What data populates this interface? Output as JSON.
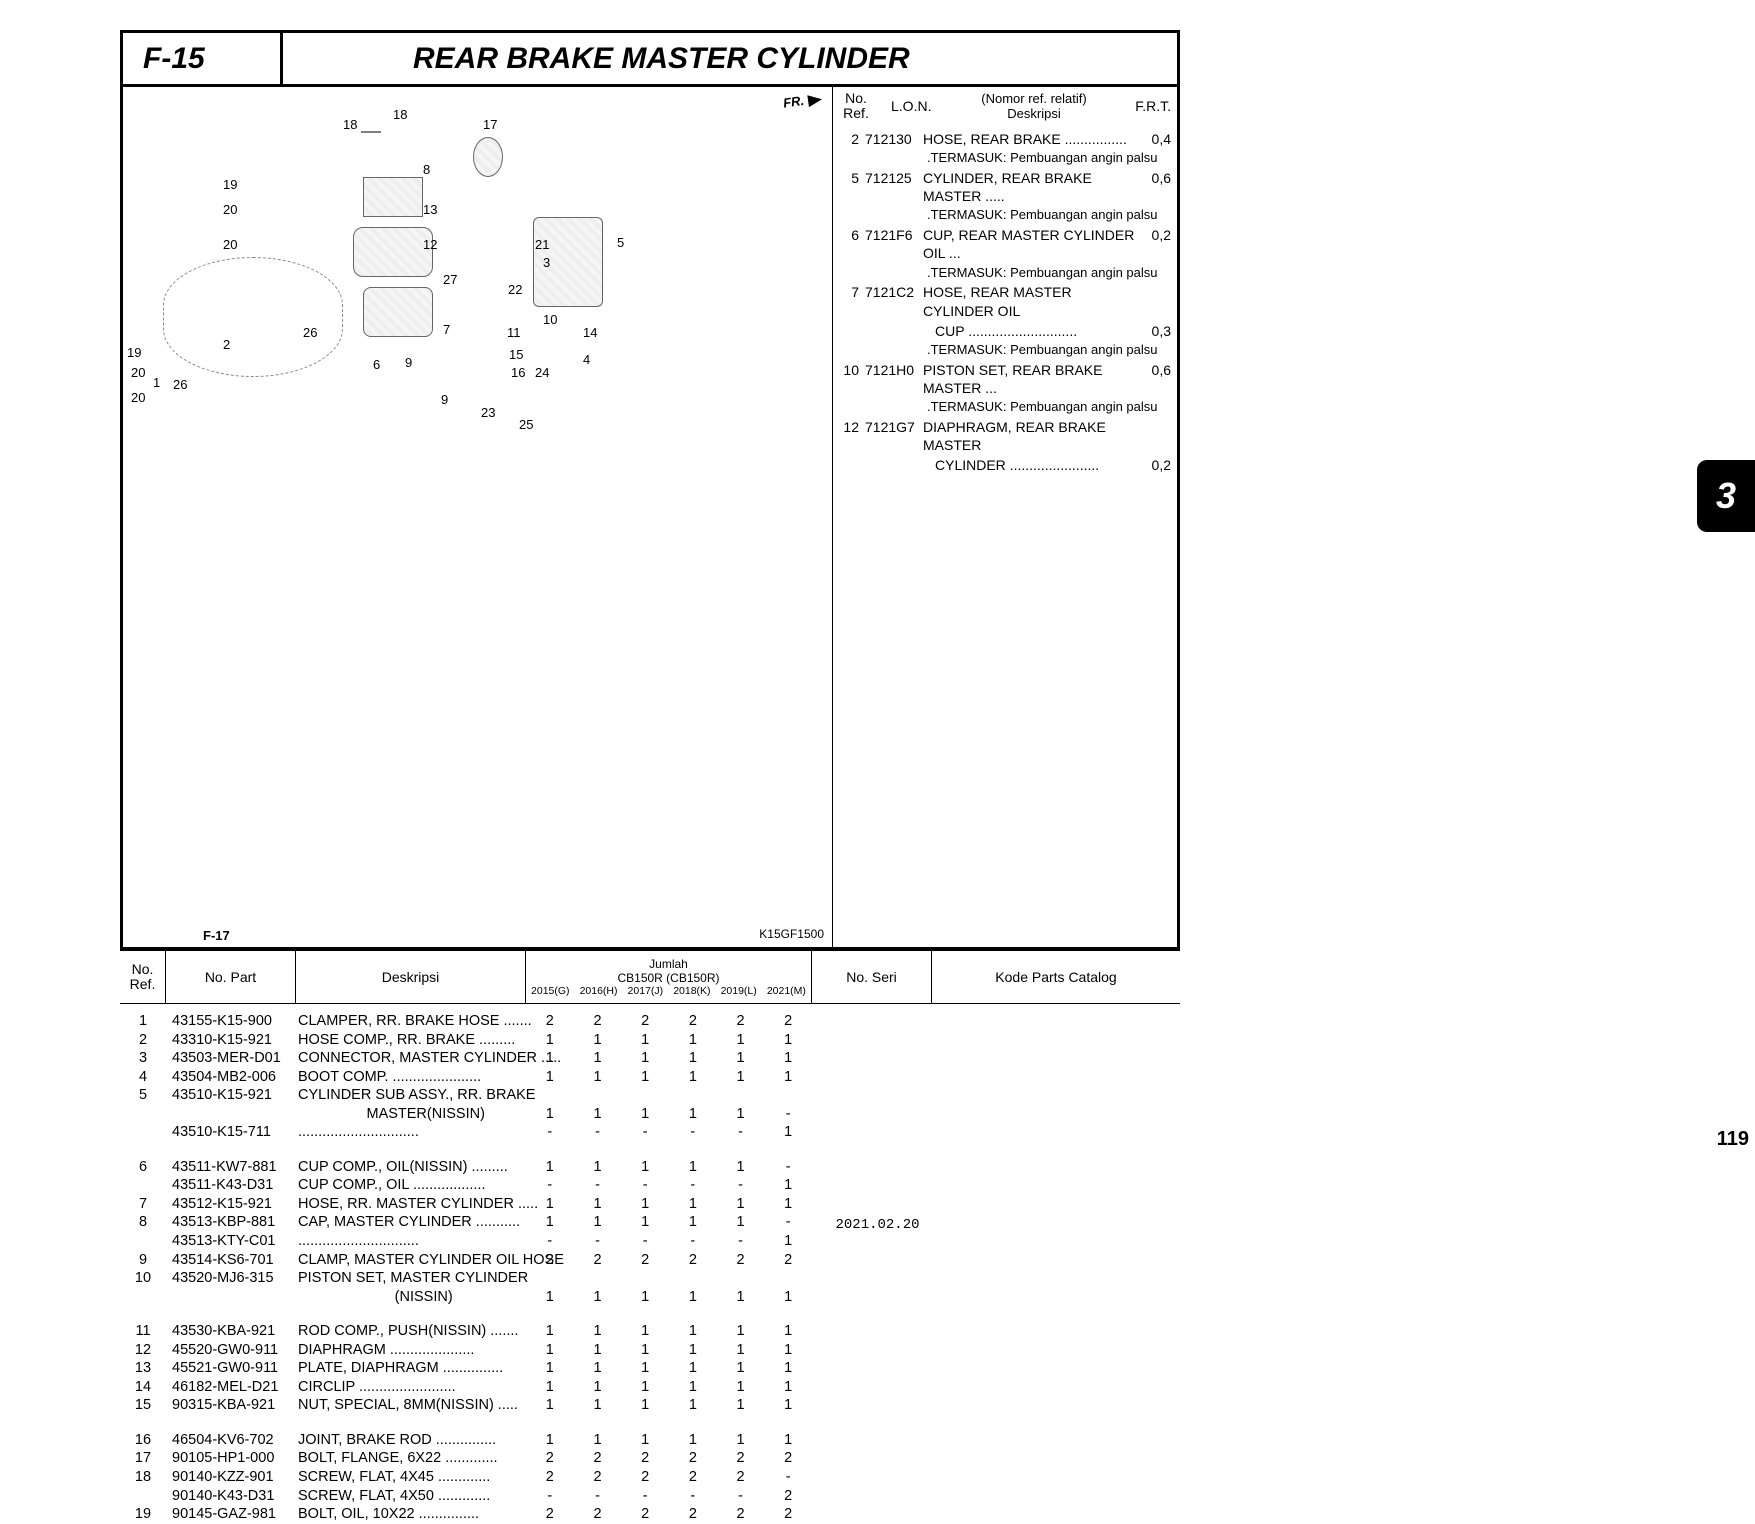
{
  "section": {
    "code": "F-15",
    "title": "REAR BRAKE MASTER CYLINDER",
    "fr_badge": "FR.",
    "model_code": "K15GF1500",
    "sublink_label": "F-17"
  },
  "side_tab": "3",
  "page_number": "119",
  "footer_date": "2021.02.20",
  "diagram_labels": [
    "18",
    "18",
    "17",
    "19",
    "20",
    "20",
    "8",
    "13",
    "12",
    "27",
    "21",
    "3",
    "5",
    "22",
    "10",
    "11",
    "14",
    "15",
    "4",
    "16",
    "24",
    "23",
    "25",
    "26",
    "26",
    "1",
    "2",
    "6",
    "9",
    "7",
    "9",
    "19",
    "20",
    "20"
  ],
  "lon": {
    "header": {
      "noref1": "No.",
      "noref2": "Ref.",
      "lon_label": "L.O.N.",
      "nomor": "(Nomor ref. relatif)",
      "deskripsi_label": "Deskripsi",
      "frt_label": "F.R.T."
    },
    "rows": [
      {
        "ref": "2",
        "lon": "712130",
        "desc": "HOSE, REAR BRAKE ................",
        "frt": "0,4",
        "sub": ".TERMASUK: Pembuangan angin palsu"
      },
      {
        "ref": "5",
        "lon": "712125",
        "desc": "CYLINDER, REAR BRAKE MASTER .....",
        "frt": "0,6",
        "sub": ".TERMASUK: Pembuangan angin palsu"
      },
      {
        "ref": "6",
        "lon": "7121F6",
        "desc": "CUP, REAR MASTER CYLINDER OIL ...",
        "frt": "0,2",
        "sub": ".TERMASUK: Pembuangan angin palsu"
      },
      {
        "ref": "7",
        "lon": "7121C2",
        "desc": "HOSE, REAR MASTER CYLINDER OIL",
        "frt": "",
        "sub": "",
        "cont": "CUP ............................",
        "cont_frt": "0,3",
        "sub2": ".TERMASUK: Pembuangan angin palsu"
      },
      {
        "ref": "10",
        "lon": "7121H0",
        "desc": "PISTON SET, REAR BRAKE MASTER ...",
        "frt": "0,6",
        "sub": ".TERMASUK: Pembuangan angin palsu"
      },
      {
        "ref": "12",
        "lon": "7121G7",
        "desc": "DIAPHRAGM, REAR BRAKE MASTER",
        "frt": "",
        "cont": "CYLINDER .......................",
        "cont_frt": "0,2"
      }
    ]
  },
  "parts_header": {
    "noref1": "No.",
    "noref2": "Ref.",
    "nopart": "No. Part",
    "deskripsi": "Deskripsi",
    "jumlah": "Jumlah",
    "model": "CB150R (CB150R)",
    "years": [
      "2015(G)",
      "2016(H)",
      "2017(J)",
      "2018(K)",
      "2019(L)",
      "2021(M)"
    ],
    "noseri": "No. Seri",
    "kpc": "Kode Parts Catalog"
  },
  "parts": [
    [
      {
        "ref": "1",
        "part": "43155-K15-900",
        "desc": "CLAMPER, RR. BRAKE HOSE .......",
        "q": [
          "2",
          "2",
          "2",
          "2",
          "2",
          "2"
        ]
      },
      {
        "ref": "2",
        "part": "43310-K15-921",
        "desc": "HOSE COMP., RR. BRAKE .........",
        "q": [
          "1",
          "1",
          "1",
          "1",
          "1",
          "1"
        ]
      },
      {
        "ref": "3",
        "part": "43503-MER-D01",
        "desc": "CONNECTOR, MASTER CYLINDER .....",
        "q": [
          "1",
          "1",
          "1",
          "1",
          "1",
          "1"
        ]
      },
      {
        "ref": "4",
        "part": "43504-MB2-006",
        "desc": "BOOT COMP. ......................",
        "q": [
          "1",
          "1",
          "1",
          "1",
          "1",
          "1"
        ]
      },
      {
        "ref": "5",
        "part": "43510-K15-921",
        "desc": "CYLINDER SUB ASSY., RR. BRAKE",
        "q": [
          "",
          "",
          "",
          "",
          "",
          ""
        ]
      },
      {
        "ref": "",
        "part": "",
        "desc": "                 MASTER(NISSIN)",
        "q": [
          "1",
          "1",
          "1",
          "1",
          "1",
          "-"
        ]
      },
      {
        "ref": "",
        "part": "43510-K15-711",
        "desc": "..............................",
        "q": [
          "-",
          "-",
          "-",
          "-",
          "-",
          "1"
        ]
      }
    ],
    [
      {
        "ref": "6",
        "part": "43511-KW7-881",
        "desc": "CUP COMP., OIL(NISSIN) .........",
        "q": [
          "1",
          "1",
          "1",
          "1",
          "1",
          "-"
        ]
      },
      {
        "ref": "",
        "part": "43511-K43-D31",
        "desc": "CUP COMP., OIL ..................",
        "q": [
          "-",
          "-",
          "-",
          "-",
          "-",
          "1"
        ]
      },
      {
        "ref": "7",
        "part": "43512-K15-921",
        "desc": "HOSE, RR. MASTER CYLINDER .....",
        "q": [
          "1",
          "1",
          "1",
          "1",
          "1",
          "1"
        ]
      },
      {
        "ref": "8",
        "part": "43513-KBP-881",
        "desc": "CAP, MASTER CYLINDER ...........",
        "q": [
          "1",
          "1",
          "1",
          "1",
          "1",
          "-"
        ]
      },
      {
        "ref": "",
        "part": "43513-KTY-C01",
        "desc": "..............................",
        "q": [
          "-",
          "-",
          "-",
          "-",
          "-",
          "1"
        ]
      },
      {
        "ref": "9",
        "part": "43514-KS6-701",
        "desc": "CLAMP, MASTER CYLINDER OIL HOSE",
        "q": [
          "2",
          "2",
          "2",
          "2",
          "2",
          "2"
        ]
      },
      {
        "ref": "10",
        "part": "43520-MJ6-315",
        "desc": "PISTON SET, MASTER CYLINDER",
        "q": [
          "",
          "",
          "",
          "",
          "",
          ""
        ]
      },
      {
        "ref": "",
        "part": "",
        "desc": "                        (NISSIN)",
        "q": [
          "1",
          "1",
          "1",
          "1",
          "1",
          "1"
        ]
      }
    ],
    [
      {
        "ref": "11",
        "part": "43530-KBA-921",
        "desc": "ROD COMP., PUSH(NISSIN) .......",
        "q": [
          "1",
          "1",
          "1",
          "1",
          "1",
          "1"
        ]
      },
      {
        "ref": "12",
        "part": "45520-GW0-911",
        "desc": "DIAPHRAGM .....................",
        "q": [
          "1",
          "1",
          "1",
          "1",
          "1",
          "1"
        ]
      },
      {
        "ref": "13",
        "part": "45521-GW0-911",
        "desc": "PLATE, DIAPHRAGM ...............",
        "q": [
          "1",
          "1",
          "1",
          "1",
          "1",
          "1"
        ]
      },
      {
        "ref": "14",
        "part": "46182-MEL-D21",
        "desc": "CIRCLIP ........................",
        "q": [
          "1",
          "1",
          "1",
          "1",
          "1",
          "1"
        ]
      },
      {
        "ref": "15",
        "part": "90315-KBA-921",
        "desc": "NUT, SPECIAL, 8MM(NISSIN) .....",
        "q": [
          "1",
          "1",
          "1",
          "1",
          "1",
          "1"
        ]
      }
    ],
    [
      {
        "ref": "16",
        "part": "46504-KV6-702",
        "desc": "JOINT, BRAKE ROD ...............",
        "q": [
          "1",
          "1",
          "1",
          "1",
          "1",
          "1"
        ]
      },
      {
        "ref": "17",
        "part": "90105-HP1-000",
        "desc": "BOLT, FLANGE, 6X22 .............",
        "q": [
          "2",
          "2",
          "2",
          "2",
          "2",
          "2"
        ]
      },
      {
        "ref": "18",
        "part": "90140-KZZ-901",
        "desc": "SCREW, FLAT, 4X45 .............",
        "q": [
          "2",
          "2",
          "2",
          "2",
          "2",
          "-"
        ]
      },
      {
        "ref": "",
        "part": "90140-K43-D31",
        "desc": "SCREW, FLAT, 4X50 .............",
        "q": [
          "-",
          "-",
          "-",
          "-",
          "-",
          "2"
        ]
      },
      {
        "ref": "19",
        "part": "90145-GAZ-981",
        "desc": "BOLT, OIL, 10X22 ...............",
        "q": [
          "2",
          "2",
          "2",
          "2",
          "2",
          "2"
        ]
      }
    ]
  ]
}
